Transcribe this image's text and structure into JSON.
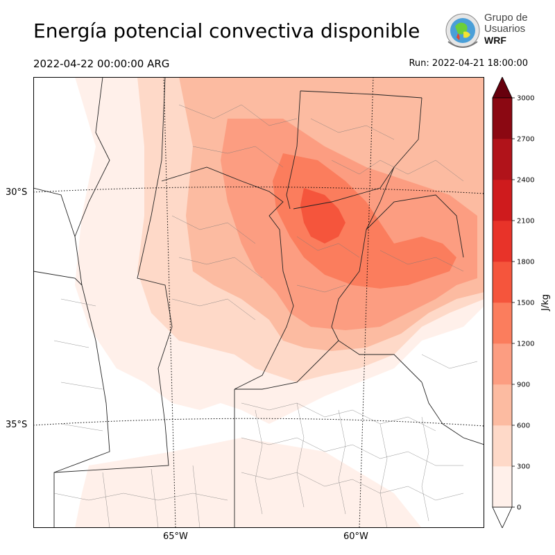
{
  "header": {
    "title": "Energía potencial convectiva disponible",
    "valid_time": "2022-04-22 00:00:00 ARG",
    "run_time": "Run: 2022-04-21 18:00:00"
  },
  "logo": {
    "line1": "Grupo de",
    "line2": "Usuarios",
    "line3": "WRF"
  },
  "map": {
    "lat_labels": [
      "30°S",
      "35°S"
    ],
    "lon_labels": [
      "65°W",
      "60°W"
    ]
  },
  "colorbar": {
    "label": "J/kg",
    "ticks": [
      "0",
      "300",
      "600",
      "900",
      "1200",
      "1500",
      "1800",
      "2100",
      "2400",
      "2700",
      "3000"
    ],
    "colors": [
      "#fff0ea",
      "#fed9c8",
      "#fcbba1",
      "#fc9d81",
      "#fb7d5d",
      "#f5553c",
      "#e83329",
      "#cf1b1d",
      "#b1131a",
      "#8b0812",
      "#67000d"
    ]
  }
}
